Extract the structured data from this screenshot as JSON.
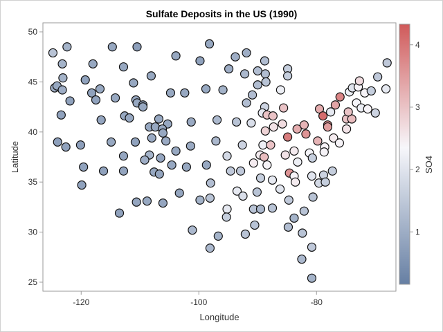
{
  "chart_data": {
    "type": "scatter",
    "title": "Sulfate Deposits in the US (1990)",
    "xlabel": "Longitude",
    "ylabel": "Latitude",
    "xlim": [
      -126.5,
      -66.5
    ],
    "ylim": [
      24.1,
      50.9
    ],
    "xticks": [
      -120,
      -100,
      -80
    ],
    "yticks": [
      25,
      30,
      35,
      40,
      45,
      50
    ],
    "grid": false,
    "colorbar": {
      "label": "SO4",
      "range": [
        0.16,
        4.33
      ],
      "ticks": [
        1,
        2,
        3,
        4
      ],
      "colors": {
        "low": "#667fa3",
        "mid": "#f7f7fb",
        "high": "#d05a5a"
      },
      "mid_value": 2.35,
      "placement": "right"
    },
    "columns": [
      "longitude",
      "latitude",
      "SO4"
    ],
    "points": [
      [
        -124.8,
        47.9,
        1.4
      ],
      [
        -122.4,
        48.5,
        1.1
      ],
      [
        -123.2,
        46.8,
        1.1
      ],
      [
        -118.0,
        46.8,
        0.9
      ],
      [
        -114.7,
        48.5,
        0.9
      ],
      [
        -110.5,
        48.5,
        0.75
      ],
      [
        -112.8,
        46.5,
        0.9
      ],
      [
        -123.1,
        45.4,
        1.1
      ],
      [
        -119.3,
        45.2,
        0.8
      ],
      [
        -111.1,
        44.9,
        0.9
      ],
      [
        -108.1,
        45.6,
        0.9
      ],
      [
        -103.9,
        47.6,
        0.9
      ],
      [
        -99.8,
        47.1,
        0.8
      ],
      [
        -98.2,
        48.8,
        0.9
      ],
      [
        -124.5,
        44.4,
        1.0
      ],
      [
        -124.1,
        44.6,
        0.9
      ],
      [
        -123.2,
        44.2,
        1.0
      ],
      [
        -121.9,
        43.1,
        0.8
      ],
      [
        -118.2,
        43.9,
        0.8
      ],
      [
        -117.5,
        43.2,
        0.8
      ],
      [
        -116.8,
        44.3,
        0.9
      ],
      [
        -114.2,
        43.4,
        0.9
      ],
      [
        -110.7,
        43.2,
        0.9
      ],
      [
        -110.5,
        42.9,
        0.9
      ],
      [
        -109.5,
        42.7,
        0.9
      ],
      [
        -109.5,
        42.5,
        0.9
      ],
      [
        -104.8,
        43.9,
        0.9
      ],
      [
        -102.4,
        43.9,
        0.9
      ],
      [
        -98.8,
        44.3,
        0.9
      ],
      [
        -95.9,
        44.2,
        1.1
      ],
      [
        -123.4,
        41.7,
        0.8
      ],
      [
        -116.6,
        41.2,
        0.85
      ],
      [
        -112.6,
        41.6,
        0.9
      ],
      [
        -111.8,
        41.4,
        0.9
      ],
      [
        -106.8,
        41.3,
        0.9
      ],
      [
        -105.3,
        40.8,
        0.9
      ],
      [
        -108.4,
        40.5,
        0.9
      ],
      [
        -107.4,
        40.5,
        0.9
      ],
      [
        -106.2,
        40.3,
        0.9
      ],
      [
        -106.1,
        39.9,
        0.9
      ],
      [
        -101.3,
        41.0,
        0.95
      ],
      [
        -96.9,
        41.2,
        1.2
      ],
      [
        -124.0,
        39.0,
        0.75
      ],
      [
        -122.6,
        38.5,
        0.8
      ],
      [
        -120.1,
        38.7,
        0.75
      ],
      [
        -114.9,
        39.0,
        0.9
      ],
      [
        -110.8,
        39.0,
        0.8
      ],
      [
        -108.0,
        39.4,
        0.95
      ],
      [
        -105.6,
        39.1,
        0.95
      ],
      [
        -103.9,
        38.1,
        0.9
      ],
      [
        -101.4,
        38.6,
        0.95
      ],
      [
        -97.1,
        39.1,
        1.2
      ],
      [
        -112.8,
        37.6,
        0.85
      ],
      [
        -108.4,
        37.7,
        1.1
      ],
      [
        -109.2,
        37.2,
        1.0
      ],
      [
        -106.5,
        37.4,
        0.85
      ],
      [
        -119.6,
        36.5,
        0.8
      ],
      [
        -116.2,
        36.1,
        0.8
      ],
      [
        -112.8,
        36.1,
        0.85
      ],
      [
        -107.6,
        36.0,
        0.9
      ],
      [
        -106.7,
        35.8,
        0.85
      ],
      [
        -104.6,
        36.7,
        0.9
      ],
      [
        -102.1,
        36.5,
        0.9
      ],
      [
        -98.7,
        36.7,
        0.9
      ],
      [
        -98.0,
        34.9,
        1.3
      ],
      [
        -119.9,
        34.7,
        0.8
      ],
      [
        -103.3,
        33.9,
        0.85
      ],
      [
        -110.6,
        33.0,
        0.85
      ],
      [
        -108.8,
        33.1,
        0.9
      ],
      [
        -106.1,
        32.9,
        0.85
      ],
      [
        -99.8,
        33.2,
        1.1
      ],
      [
        -98.1,
        33.4,
        1.4
      ],
      [
        -113.5,
        31.9,
        0.8
      ],
      [
        -101.1,
        30.2,
        1.2
      ],
      [
        -96.7,
        29.6,
        1.1
      ],
      [
        -98.1,
        28.4,
        1.2
      ],
      [
        -93.8,
        47.5,
        1.0
      ],
      [
        -91.9,
        47.9,
        1.0
      ],
      [
        -88.8,
        47.1,
        1.3
      ],
      [
        -94.9,
        46.3,
        1.0
      ],
      [
        -92.2,
        45.8,
        1.2
      ],
      [
        -90.0,
        46.1,
        1.3
      ],
      [
        -88.7,
        45.8,
        1.3
      ],
      [
        -84.9,
        46.3,
        1.6
      ],
      [
        -84.9,
        45.6,
        1.6
      ],
      [
        -88.6,
        45.0,
        1.4
      ],
      [
        -90.0,
        44.7,
        1.3
      ],
      [
        -90.9,
        43.7,
        1.3
      ],
      [
        -86.1,
        44.2,
        2.2
      ],
      [
        -91.9,
        42.9,
        1.3
      ],
      [
        -88.8,
        42.5,
        1.7
      ],
      [
        -89.2,
        41.9,
        2.1
      ],
      [
        -88.4,
        41.7,
        3.0
      ],
      [
        -87.4,
        41.6,
        3.0
      ],
      [
        -85.6,
        42.4,
        3.0
      ],
      [
        -93.6,
        41.0,
        1.4
      ],
      [
        -91.1,
        40.9,
        1.9
      ],
      [
        -88.7,
        40.1,
        2.8
      ],
      [
        -87.3,
        40.5,
        2.6
      ],
      [
        -85.8,
        40.8,
        2.7
      ],
      [
        -83.3,
        40.3,
        3.3
      ],
      [
        -82.1,
        40.7,
        3.2
      ],
      [
        -81.8,
        39.8,
        3.6
      ],
      [
        -84.9,
        39.5,
        3.9
      ],
      [
        -79.5,
        42.3,
        3.3
      ],
      [
        -78.9,
        41.6,
        4.1
      ],
      [
        -77.6,
        42.0,
        2.1
      ],
      [
        -76.8,
        42.7,
        3.4
      ],
      [
        -76.0,
        43.5,
        3.8
      ],
      [
        -78.1,
        40.7,
        3.7
      ],
      [
        -78.1,
        40.5,
        3.5
      ],
      [
        -79.8,
        39.1,
        3.2
      ],
      [
        -77.1,
        39.4,
        2.5
      ],
      [
        -76.1,
        38.9,
        2.4
      ],
      [
        -74.9,
        40.3,
        2.6
      ],
      [
        -74.9,
        41.3,
        3.0
      ],
      [
        -74.0,
        41.3,
        3.1
      ],
      [
        -74.6,
        42.0,
        3.0
      ],
      [
        -73.2,
        42.9,
        2.3
      ],
      [
        -72.4,
        42.4,
        2.2
      ],
      [
        -71.3,
        42.3,
        2.4
      ],
      [
        -70.0,
        41.9,
        1.7
      ],
      [
        -74.4,
        44.0,
        2.2
      ],
      [
        -73.9,
        44.4,
        2.0
      ],
      [
        -72.9,
        44.5,
        2.4
      ],
      [
        -72.7,
        45.1,
        2.7
      ],
      [
        -71.8,
        43.9,
        2.4
      ],
      [
        -70.7,
        44.1,
        1.6
      ],
      [
        -69.6,
        45.5,
        1.5
      ],
      [
        -68.2,
        44.3,
        2.1
      ],
      [
        -68.0,
        46.9,
        1.5
      ],
      [
        -92.6,
        38.7,
        1.7
      ],
      [
        -89.1,
        38.7,
        2.2
      ],
      [
        -87.8,
        38.7,
        3.0
      ],
      [
        -95.2,
        37.6,
        1.8
      ],
      [
        -89.6,
        37.7,
        2.5
      ],
      [
        -88.9,
        37.5,
        3.1
      ],
      [
        -85.3,
        37.7,
        2.6
      ],
      [
        -83.8,
        38.1,
        2.5
      ],
      [
        -81.2,
        37.9,
        2.3
      ],
      [
        -78.6,
        38.5,
        2.4
      ],
      [
        -78.7,
        38.0,
        2.4
      ],
      [
        -80.7,
        37.4,
        1.6
      ],
      [
        -90.7,
        36.9,
        2.5
      ],
      [
        -88.4,
        36.7,
        2.4
      ],
      [
        -83.2,
        37.0,
        2.2
      ],
      [
        -94.6,
        36.1,
        1.5
      ],
      [
        -92.9,
        36.1,
        1.5
      ],
      [
        -89.5,
        35.4,
        1.6
      ],
      [
        -87.5,
        35.2,
        2.1
      ],
      [
        -84.6,
        35.9,
        3.6
      ],
      [
        -83.8,
        35.6,
        2.4
      ],
      [
        -83.6,
        35.0,
        2.5
      ],
      [
        -80.8,
        35.6,
        2.0
      ],
      [
        -78.8,
        35.7,
        1.7
      ],
      [
        -77.3,
        36.1,
        1.6
      ],
      [
        -79.6,
        34.9,
        1.8
      ],
      [
        -78.5,
        35.0,
        1.6
      ],
      [
        -93.5,
        34.1,
        2.1
      ],
      [
        -92.5,
        33.6,
        1.9
      ],
      [
        -90.1,
        34.0,
        1.4
      ],
      [
        -86.2,
        34.3,
        2.0
      ],
      [
        -80.6,
        33.5,
        1.4
      ],
      [
        -84.7,
        33.2,
        1.5
      ],
      [
        -95.2,
        32.3,
        2.1
      ],
      [
        -95.3,
        31.5,
        1.6
      ],
      [
        -90.7,
        32.3,
        1.4
      ],
      [
        -89.5,
        32.3,
        1.2
      ],
      [
        -87.5,
        32.4,
        1.4
      ],
      [
        -82.1,
        32.1,
        1.4
      ],
      [
        -83.8,
        31.4,
        1.1
      ],
      [
        -90.5,
        30.7,
        1.4
      ],
      [
        -84.8,
        30.5,
        1.3
      ],
      [
        -82.4,
        29.9,
        1.4
      ],
      [
        -92.1,
        29.8,
        1.4
      ],
      [
        -80.8,
        28.5,
        1.5
      ],
      [
        -82.5,
        27.3,
        1.2
      ],
      [
        -80.8,
        25.4,
        1.1
      ]
    ]
  }
}
